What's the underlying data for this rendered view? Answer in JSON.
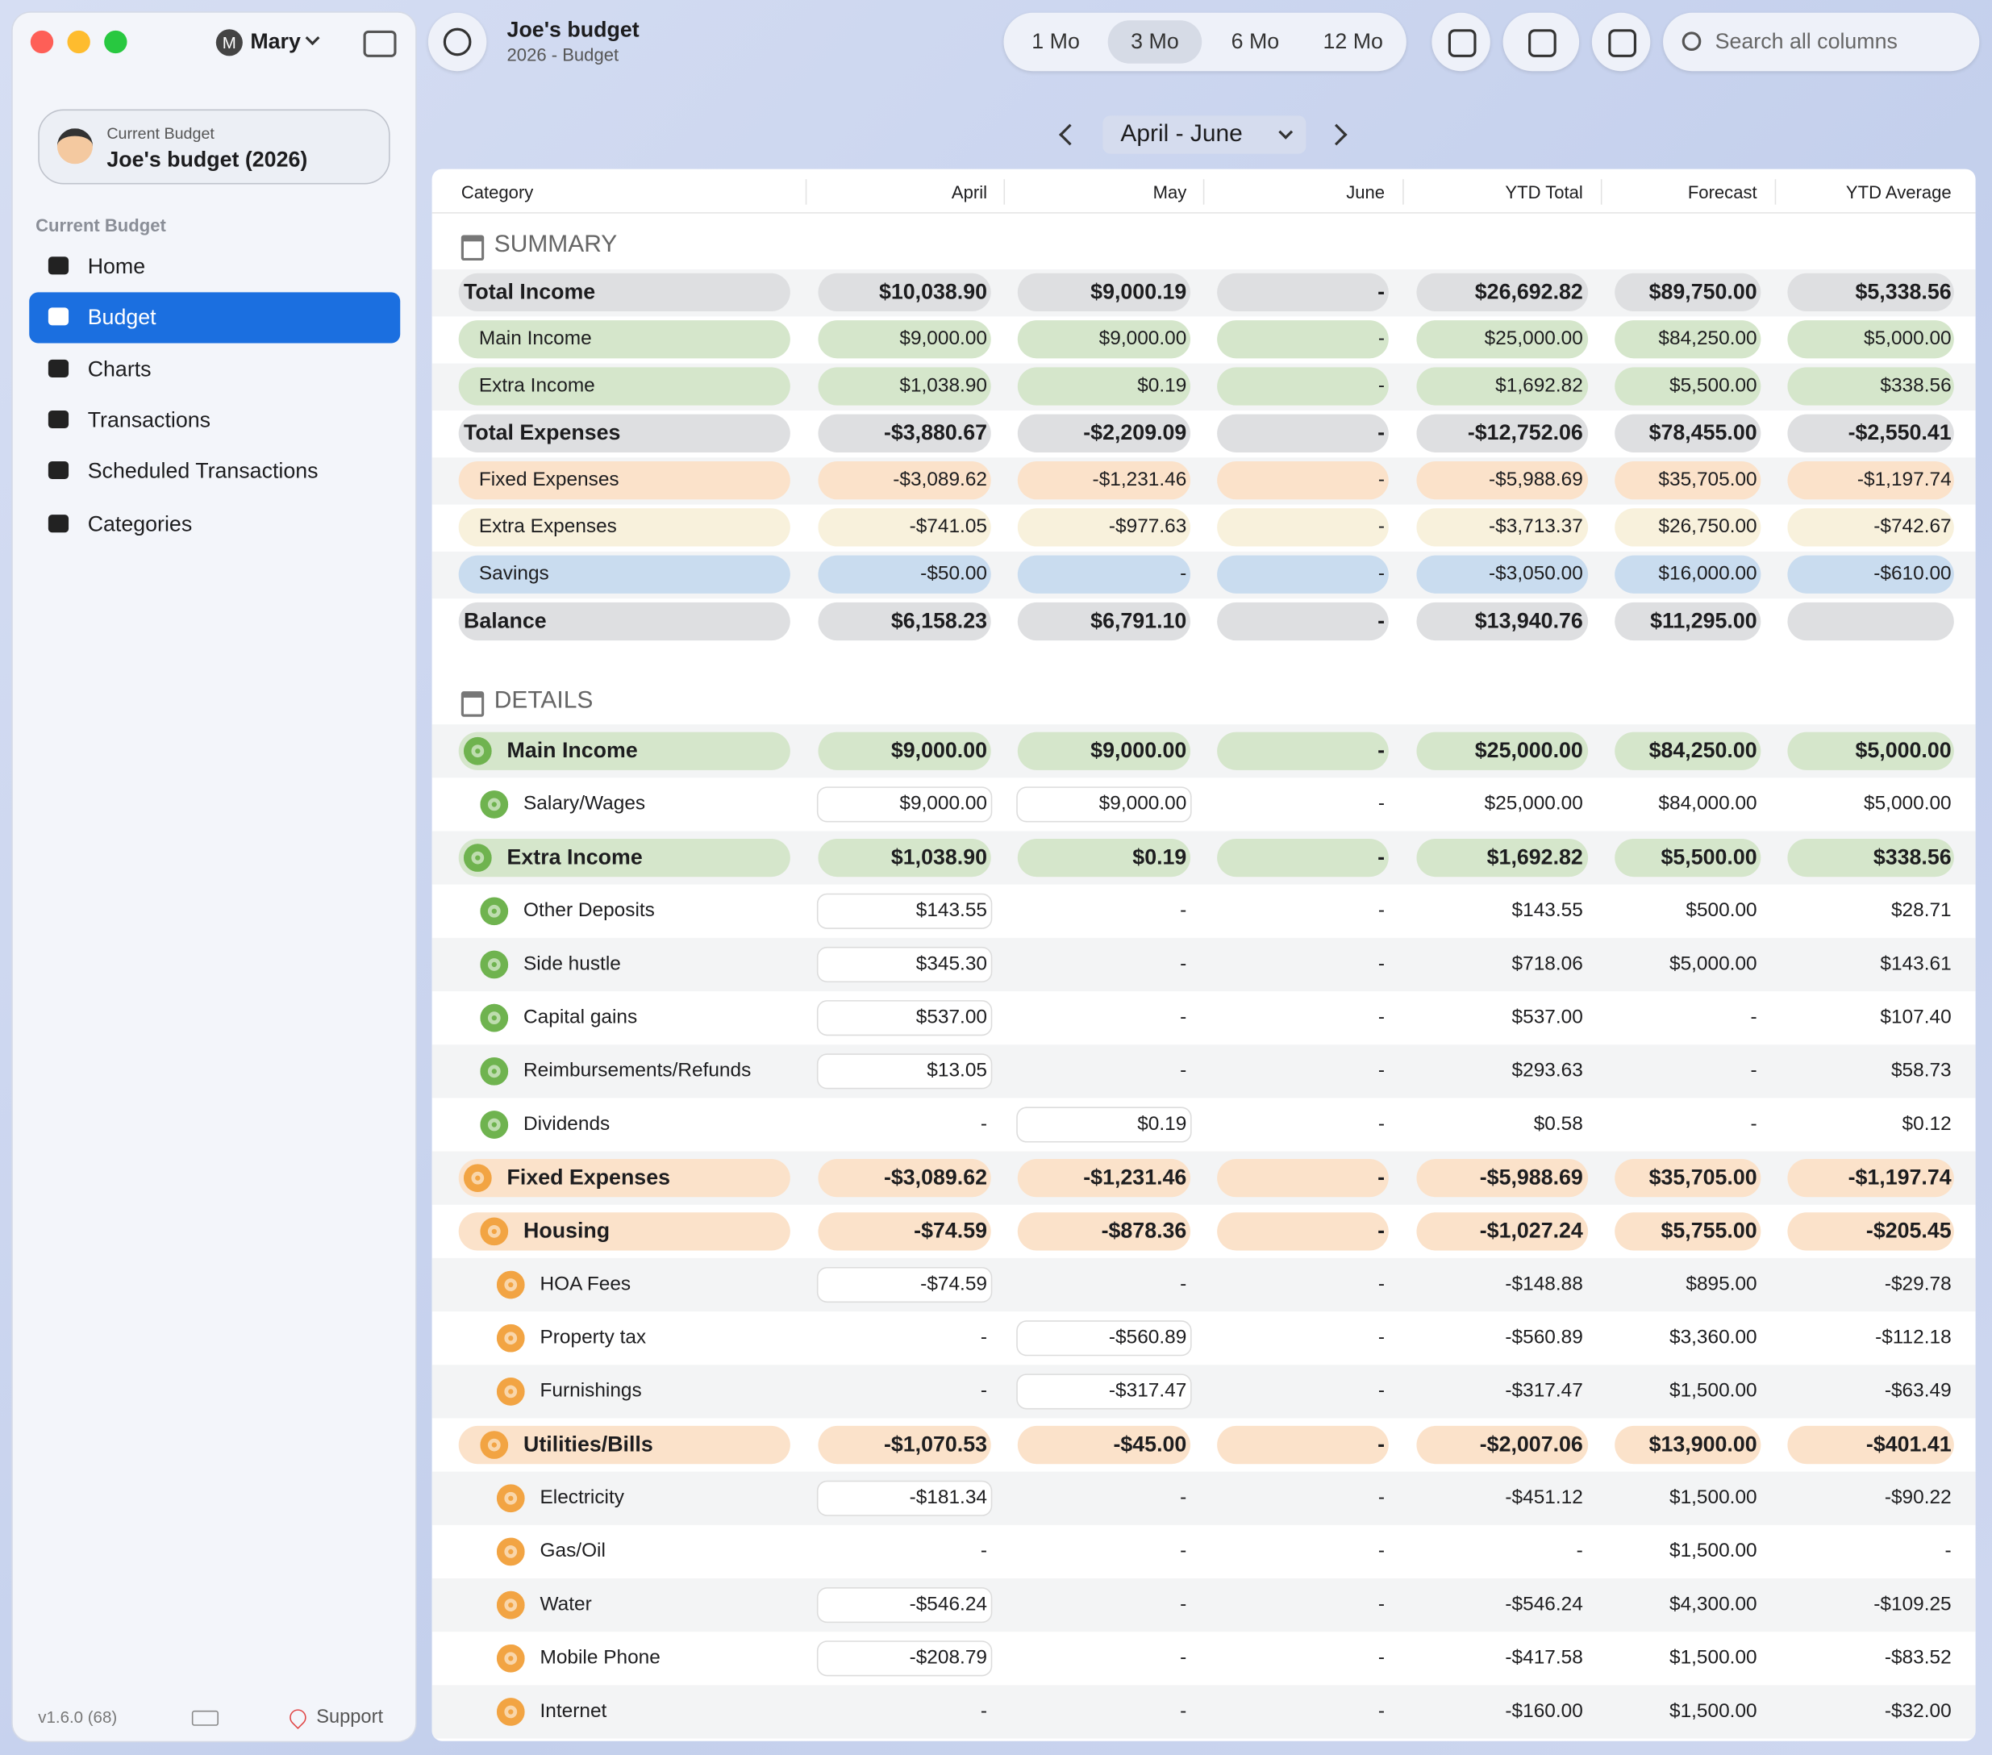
{
  "window": {
    "user_initial": "M",
    "user": "Mary"
  },
  "sidebar": {
    "current_budget_label": "Current Budget",
    "current_budget_name": "Joe's budget (2026)",
    "section_label": "Current Budget",
    "nav": [
      {
        "label": "Home",
        "selected": false
      },
      {
        "label": "Budget",
        "selected": true
      },
      {
        "label": "Charts",
        "selected": false
      },
      {
        "label": "Transactions",
        "selected": false
      },
      {
        "label": "Scheduled Transactions",
        "selected": false
      },
      {
        "label": "Categories",
        "selected": false
      }
    ],
    "version": "v1.6.0 (68)",
    "support": "Support"
  },
  "header": {
    "title": "Joe's budget",
    "subtitle": "2026 - Budget",
    "periods": [
      "1 Mo",
      "3 Mo",
      "6 Mo",
      "12 Mo"
    ],
    "selected_period": 1,
    "search_placeholder": "Search all columns",
    "range": "April - June"
  },
  "table": {
    "columns": [
      "Category",
      "April",
      "May",
      "June",
      "YTD Total",
      "Forecast",
      "YTD Average"
    ],
    "sections": [
      {
        "title": "SUMMARY",
        "rows": [
          {
            "label": "Total Income",
            "kind": "total",
            "tone": "gray",
            "cells": [
              "$10,038.90",
              "$9,000.19",
              "-",
              "$26,692.82",
              "$89,750.00",
              "$5,338.56"
            ]
          },
          {
            "label": "Main Income",
            "kind": "sub",
            "tone": "green",
            "cells": [
              "$9,000.00",
              "$9,000.00",
              "-",
              "$25,000.00",
              "$84,250.00",
              "$5,000.00"
            ]
          },
          {
            "label": "Extra Income",
            "kind": "sub",
            "tone": "green",
            "cells": [
              "$1,038.90",
              "$0.19",
              "-",
              "$1,692.82",
              "$5,500.00",
              "$338.56"
            ]
          },
          {
            "label": "Total Expenses",
            "kind": "total",
            "tone": "gray",
            "cells": [
              "-$3,880.67",
              "-$2,209.09",
              "-",
              "-$12,752.06",
              "$78,455.00",
              "-$2,550.41"
            ]
          },
          {
            "label": "Fixed Expenses",
            "kind": "sub",
            "tone": "orange",
            "cells": [
              "-$3,089.62",
              "-$1,231.46",
              "-",
              "-$5,988.69",
              "$35,705.00",
              "-$1,197.74"
            ]
          },
          {
            "label": "Extra Expenses",
            "kind": "sub",
            "tone": "yellow",
            "cells": [
              "-$741.05",
              "-$977.63",
              "-",
              "-$3,713.37",
              "$26,750.00",
              "-$742.67"
            ]
          },
          {
            "label": "Savings",
            "kind": "sub",
            "tone": "blue",
            "cells": [
              "-$50.00",
              "-",
              "-",
              "-$3,050.00",
              "$16,000.00",
              "-$610.00"
            ]
          },
          {
            "label": "Balance",
            "kind": "total",
            "tone": "gray",
            "cells": [
              "$6,158.23",
              "$6,791.10",
              "-",
              "$13,940.76",
              "$11,295.00",
              null
            ]
          }
        ]
      },
      {
        "title": "DETAILS",
        "rows": [
          {
            "label": "Main Income",
            "kind": "group",
            "tone": "green",
            "level": 0,
            "cells": [
              "$9,000.00",
              "$9,000.00",
              "-",
              "$25,000.00",
              "$84,250.00",
              "$5,000.00"
            ]
          },
          {
            "label": "Salary/Wages",
            "kind": "item",
            "tone": "green",
            "level": 1,
            "cells": [
              "$9,000.00",
              "$9,000.00",
              "-",
              "$25,000.00",
              "$84,000.00",
              "$5,000.00"
            ]
          },
          {
            "label": "Extra Income",
            "kind": "group",
            "tone": "green",
            "level": 0,
            "cells": [
              "$1,038.90",
              "$0.19",
              "-",
              "$1,692.82",
              "$5,500.00",
              "$338.56"
            ]
          },
          {
            "label": "Other Deposits",
            "kind": "item",
            "tone": "green",
            "level": 1,
            "cells": [
              "$143.55",
              "-",
              "-",
              "$143.55",
              "$500.00",
              "$28.71"
            ]
          },
          {
            "label": "Side hustle",
            "kind": "item",
            "tone": "green",
            "level": 1,
            "cells": [
              "$345.30",
              "-",
              "-",
              "$718.06",
              "$5,000.00",
              "$143.61"
            ]
          },
          {
            "label": "Capital gains",
            "kind": "item",
            "tone": "green",
            "level": 1,
            "cells": [
              "$537.00",
              "-",
              "-",
              "$537.00",
              "-",
              "$107.40"
            ]
          },
          {
            "label": "Reimbursements/Refunds",
            "kind": "item",
            "tone": "green",
            "level": 1,
            "cells": [
              "$13.05",
              "-",
              "-",
              "$293.63",
              "-",
              "$58.73"
            ]
          },
          {
            "label": "Dividends",
            "kind": "item",
            "tone": "green",
            "level": 1,
            "cells": [
              "-",
              "$0.19",
              "-",
              "$0.58",
              "-",
              "$0.12"
            ]
          },
          {
            "label": "Fixed Expenses",
            "kind": "group",
            "tone": "orange",
            "level": 0,
            "cells": [
              "-$3,089.62",
              "-$1,231.46",
              "-",
              "-$5,988.69",
              "$35,705.00",
              "-$1,197.74"
            ]
          },
          {
            "label": "Housing",
            "kind": "group",
            "tone": "orange",
            "level": 1,
            "cells": [
              "-$74.59",
              "-$878.36",
              "-",
              "-$1,027.24",
              "$5,755.00",
              "-$205.45"
            ]
          },
          {
            "label": "HOA Fees",
            "kind": "item",
            "tone": "orange",
            "level": 2,
            "cells": [
              "-$74.59",
              "-",
              "-",
              "-$148.88",
              "$895.00",
              "-$29.78"
            ]
          },
          {
            "label": "Property tax",
            "kind": "item",
            "tone": "orange",
            "level": 2,
            "cells": [
              "-",
              "-$560.89",
              "-",
              "-$560.89",
              "$3,360.00",
              "-$112.18"
            ]
          },
          {
            "label": "Furnishings",
            "kind": "item",
            "tone": "orange",
            "level": 2,
            "cells": [
              "-",
              "-$317.47",
              "-",
              "-$317.47",
              "$1,500.00",
              "-$63.49"
            ]
          },
          {
            "label": "Utilities/Bills",
            "kind": "group",
            "tone": "orange",
            "level": 1,
            "cells": [
              "-$1,070.53",
              "-$45.00",
              "-",
              "-$2,007.06",
              "$13,900.00",
              "-$401.41"
            ]
          },
          {
            "label": "Electricity",
            "kind": "item",
            "tone": "orange",
            "level": 2,
            "cells": [
              "-$181.34",
              "-",
              "-",
              "-$451.12",
              "$1,500.00",
              "-$90.22"
            ]
          },
          {
            "label": "Gas/Oil",
            "kind": "item",
            "tone": "orange",
            "level": 2,
            "cells": [
              "-",
              "-",
              "-",
              "-",
              "$1,500.00",
              "-"
            ]
          },
          {
            "label": "Water",
            "kind": "item",
            "tone": "orange",
            "level": 2,
            "cells": [
              "-$546.24",
              "-",
              "-",
              "-$546.24",
              "$4,300.00",
              "-$109.25"
            ]
          },
          {
            "label": "Mobile Phone",
            "kind": "item",
            "tone": "orange",
            "level": 2,
            "cells": [
              "-$208.79",
              "-",
              "-",
              "-$417.58",
              "$1,500.00",
              "-$83.52"
            ]
          },
          {
            "label": "Internet",
            "kind": "item",
            "tone": "orange",
            "level": 2,
            "cells": [
              "-",
              "-",
              "-",
              "-$160.00",
              "$1,500.00",
              "-$32.00"
            ]
          }
        ]
      }
    ]
  }
}
